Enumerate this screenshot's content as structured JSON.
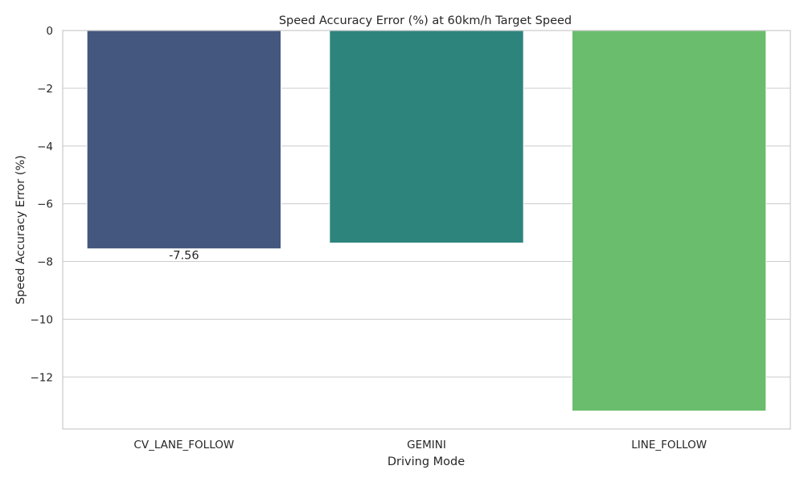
{
  "chart_data": {
    "type": "bar",
    "title": "Speed Accuracy Error (%) at 60km/h Target Speed",
    "xlabel": "Driving Mode",
    "ylabel": "Speed Accuracy Error (%)",
    "categories": [
      "CV_LANE_FOLLOW",
      "GEMINI",
      "LINE_FOLLOW"
    ],
    "values": [
      -7.56,
      -7.36,
      -13.18
    ],
    "colors": [
      "#43577f",
      "#2d847d",
      "#6abd6d"
    ],
    "data_labels": [
      "-7.56",
      "",
      ""
    ],
    "ylim": [
      -13.8,
      0
    ],
    "yticks": [
      0,
      -2,
      -4,
      -6,
      -8,
      -10,
      -12
    ],
    "ytick_labels": [
      "0",
      "−2",
      "−4",
      "−6",
      "−8",
      "−10",
      "−12"
    ],
    "grid": "horizontal",
    "legend": "none"
  }
}
